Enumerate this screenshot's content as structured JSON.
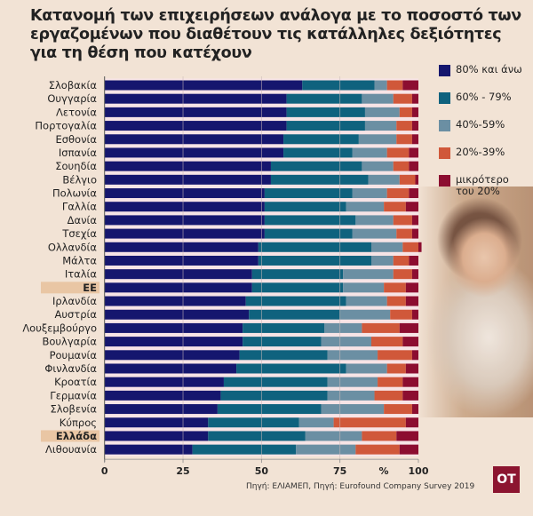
{
  "title": "Κατανομή των επιχειρήσεων ανάλογα με το ποσοστό των εργαζομένων που διαθέτουν τις κατάλληλες δεξιότητες για τη θέση που κατέχουν",
  "source": "Πηγή: ΕΛΙΑΜΕΠ, Πηγή: Eurofound Company Survey 2019",
  "logo_text": "OT",
  "colors": {
    "background": "#f2e3d5",
    "highlight": "#e9c6a4",
    "separator": "#f7e4e6"
  },
  "chart_data": {
    "type": "bar",
    "orientation": "horizontal",
    "stacked": true,
    "xlim": [
      0,
      100
    ],
    "xticks": [
      "0",
      "25",
      "50",
      "75",
      "100"
    ],
    "xunit": "%",
    "grid": true,
    "legend_position": "right",
    "highlighted": [
      "ΕΕ",
      "Ελλάδα"
    ],
    "categories": [
      "Σλοβακία",
      "Ουγγαρία",
      "Λετονία",
      "Πορτογαλία",
      "Εσθονία",
      "Ισπανία",
      "Σουηδία",
      "Βέλγιο",
      "Πολωνία",
      "Γαλλία",
      "Δανία",
      "Τσεχία",
      "Ολλανδία",
      "Μάλτα",
      "Ιταλία",
      "ΕΕ",
      "Ιρλανδία",
      "Αυστρία",
      "Λουξεμβούργο",
      "Βουλγαρία",
      "Ρουμανία",
      "Φινλανδία",
      "Κροατία",
      "Γερμανία",
      "Σλοβενία",
      "Κύπρος",
      "Ελλάδα",
      "Λιθουανία"
    ],
    "series": [
      {
        "name": "80% και άνω",
        "color": "#15166e",
        "values": [
          63,
          58,
          58,
          58,
          57,
          57,
          53,
          53,
          51,
          51,
          51,
          51,
          49,
          49,
          47,
          47,
          45,
          46,
          44,
          44,
          43,
          42,
          38,
          37,
          36,
          33,
          33,
          28
        ]
      },
      {
        "name": "60% - 79%",
        "color": "#0f627e",
        "values": [
          23,
          24,
          25,
          25,
          24,
          22,
          29,
          31,
          28,
          26,
          29,
          28,
          36,
          36,
          29,
          29,
          32,
          29,
          26,
          25,
          28,
          35,
          33,
          34,
          33,
          29,
          31,
          33
        ]
      },
      {
        "name": "40%-59%",
        "color": "#6b8fa3",
        "values": [
          4,
          10,
          11,
          10,
          12,
          11,
          10,
          10,
          11,
          12,
          12,
          14,
          10,
          7,
          16,
          13,
          13,
          16,
          12,
          16,
          16,
          13,
          16,
          15,
          20,
          11,
          18,
          19
        ]
      },
      {
        "name": "20%-39%",
        "color": "#d0583a",
        "values": [
          5,
          6,
          4,
          5,
          5,
          7,
          5,
          5,
          7,
          7,
          6,
          5,
          5,
          5,
          6,
          7,
          6,
          7,
          12,
          10,
          11,
          6,
          8,
          9,
          9,
          23,
          11,
          14
        ]
      },
      {
        "name": "μικρότερο του 20%",
        "color": "#8c0d30",
        "values": [
          5,
          2,
          2,
          2,
          2,
          3,
          3,
          1,
          3,
          4,
          2,
          2,
          1,
          3,
          2,
          4,
          4,
          2,
          6,
          5,
          2,
          4,
          5,
          5,
          2,
          4,
          7,
          6
        ]
      }
    ]
  }
}
